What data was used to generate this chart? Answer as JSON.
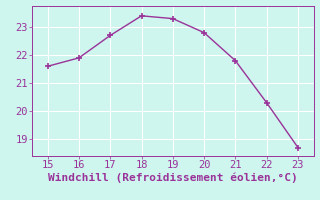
{
  "x": [
    15,
    16,
    17,
    18,
    19,
    20,
    21,
    22,
    23
  ],
  "y": [
    21.6,
    21.9,
    22.7,
    23.4,
    23.3,
    22.8,
    21.8,
    20.3,
    18.7
  ],
  "line_color": "#993399",
  "marker": "+",
  "marker_size": 5,
  "marker_color": "#993399",
  "background_color": "#cef5ee",
  "grid_color": "#ffffff",
  "xlabel": "Windchill (Refroidissement éolien,°C)",
  "xlabel_color": "#993399",
  "xlabel_fontsize": 8,
  "tick_color": "#993399",
  "tick_fontsize": 7.5,
  "xlim": [
    14.5,
    23.5
  ],
  "ylim": [
    18.4,
    23.75
  ],
  "yticks": [
    19,
    20,
    21,
    22,
    23
  ],
  "xticks": [
    15,
    16,
    17,
    18,
    19,
    20,
    21,
    22,
    23
  ],
  "linewidth": 1.0,
  "figsize": [
    3.2,
    2.0
  ],
  "dpi": 100
}
